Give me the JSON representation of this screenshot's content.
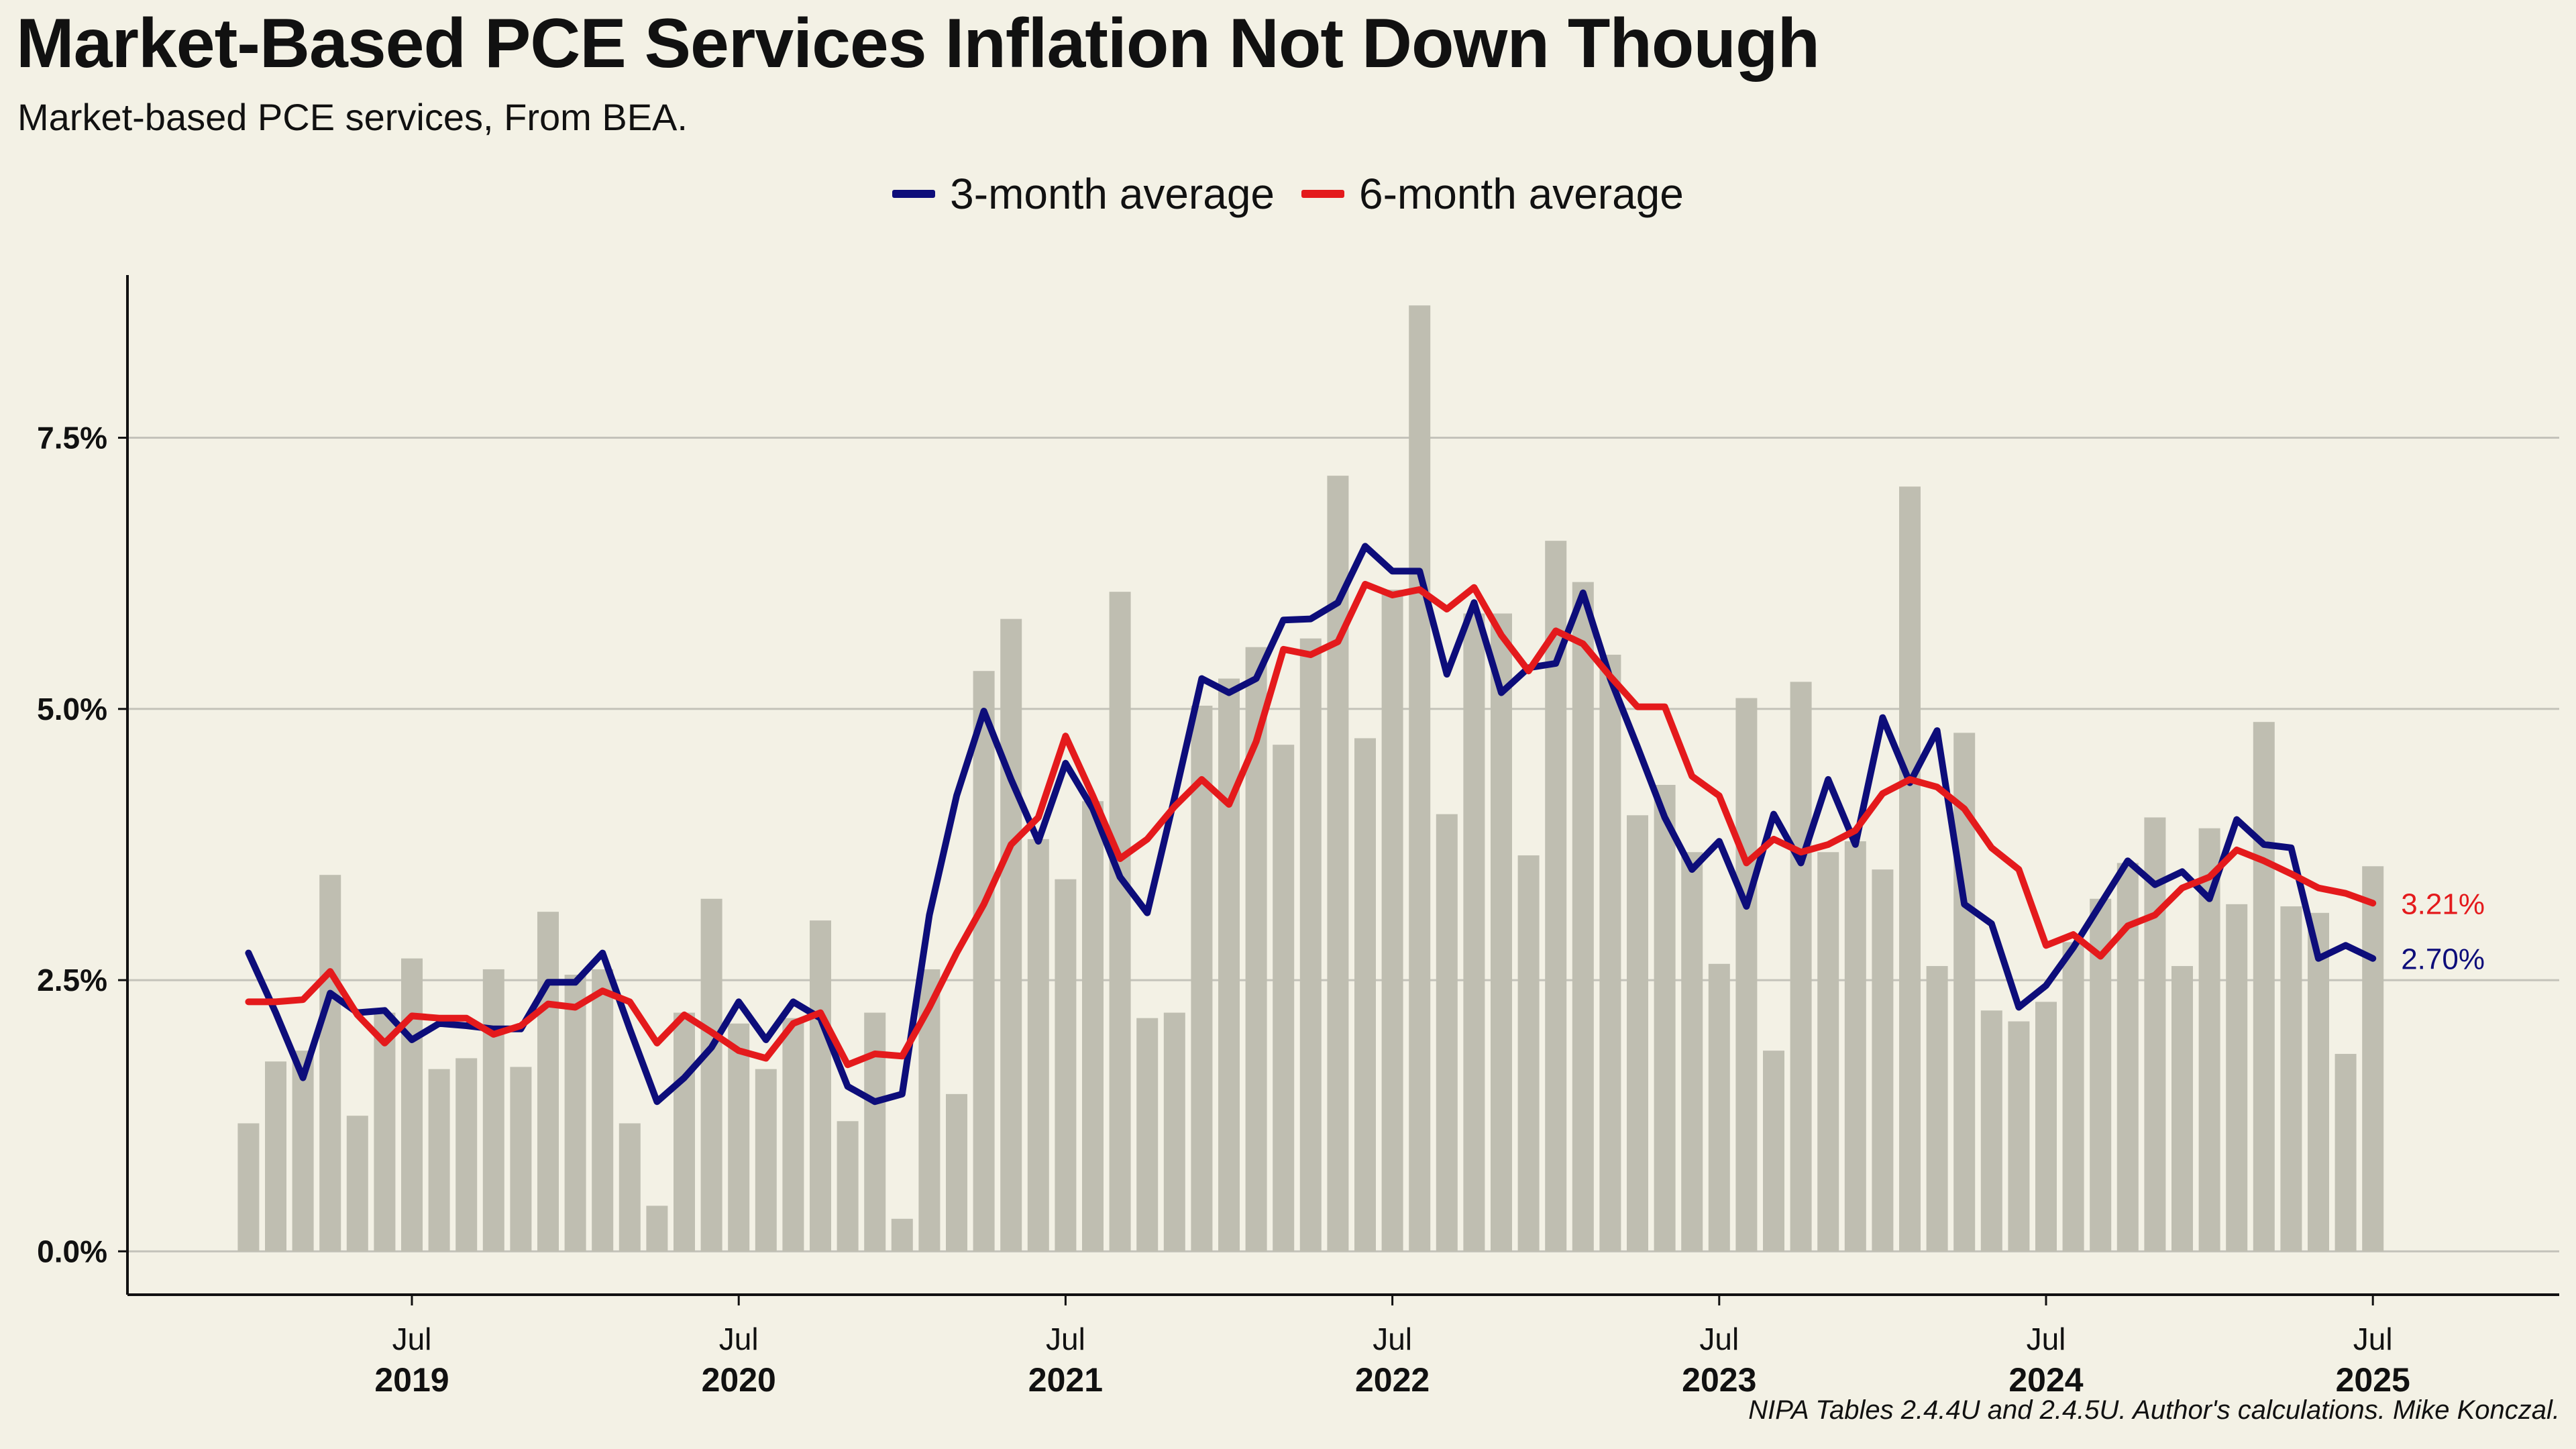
{
  "title": "Market-Based PCE Services Inflation Not Down Though",
  "subtitle": "Market-based PCE services, From BEA.",
  "caption": "NIPA Tables 2.4.4U and 2.4.5U. Author's calculations. Mike Konczal.",
  "chart_data": {
    "type": "bar+line",
    "x_start": "2019-01",
    "x_months": [
      "2019-01",
      "2019-02",
      "2019-03",
      "2019-04",
      "2019-05",
      "2019-06",
      "2019-07",
      "2019-08",
      "2019-09",
      "2019-10",
      "2019-11",
      "2019-12",
      "2020-01",
      "2020-02",
      "2020-03",
      "2020-04",
      "2020-05",
      "2020-06",
      "2020-07",
      "2020-08",
      "2020-09",
      "2020-10",
      "2020-11",
      "2020-12",
      "2021-01",
      "2021-02",
      "2021-03",
      "2021-04",
      "2021-05",
      "2021-06",
      "2021-07",
      "2021-08",
      "2021-09",
      "2021-10",
      "2021-11",
      "2021-12",
      "2022-01",
      "2022-02",
      "2022-03",
      "2022-04",
      "2022-05",
      "2022-06",
      "2022-07",
      "2022-08",
      "2022-09",
      "2022-10",
      "2022-11",
      "2022-12",
      "2023-01",
      "2023-02",
      "2023-03",
      "2023-04",
      "2023-05",
      "2023-06",
      "2023-07",
      "2023-08",
      "2023-09",
      "2023-10",
      "2023-11",
      "2023-12",
      "2024-01",
      "2024-02",
      "2024-03",
      "2024-04",
      "2024-05",
      "2024-06",
      "2024-07",
      "2024-08",
      "2024-09",
      "2024-10",
      "2024-11",
      "2024-12",
      "2025-01",
      "2025-02",
      "2025-03",
      "2025-04",
      "2025-05",
      "2025-06",
      "2025-07"
    ],
    "bars": [
      1.18,
      1.75,
      1.85,
      3.47,
      1.25,
      2.2,
      2.7,
      1.68,
      1.78,
      2.6,
      1.7,
      3.13,
      2.55,
      2.6,
      1.18,
      0.42,
      2.2,
      3.25,
      2.1,
      1.68,
      2.15,
      3.05,
      1.2,
      2.2,
      0.3,
      2.6,
      1.45,
      5.35,
      5.83,
      3.8,
      3.43,
      4.15,
      6.08,
      2.15,
      2.2,
      5.03,
      5.28,
      5.57,
      4.67,
      5.65,
      7.15,
      4.73,
      6.1,
      8.72,
      4.03,
      5.88,
      5.88,
      3.65,
      6.55,
      6.17,
      5.5,
      4.02,
      4.3,
      3.68,
      2.65,
      5.1,
      1.85,
      5.25,
      3.68,
      3.78,
      3.52,
      7.05,
      2.63,
      4.78,
      2.22,
      2.12,
      2.3,
      2.85,
      3.25,
      3.58,
      4.0,
      2.63,
      3.9,
      3.2,
      4.88,
      3.18,
      3.12,
      1.82,
      3.55
    ],
    "series": [
      {
        "name": "3-month average",
        "color": "#0d0d7a",
        "values": [
          2.75,
          2.2,
          1.6,
          2.38,
          2.2,
          2.22,
          1.95,
          2.1,
          2.08,
          2.05,
          2.05,
          2.48,
          2.48,
          2.75,
          2.05,
          1.38,
          1.6,
          1.88,
          2.3,
          1.95,
          2.3,
          2.15,
          1.52,
          1.38,
          1.45,
          3.1,
          4.2,
          4.98,
          4.35,
          3.78,
          4.5,
          4.08,
          3.45,
          3.12,
          4.18,
          5.28,
          5.15,
          5.28,
          5.82,
          5.83,
          5.98,
          6.5,
          6.27,
          6.27,
          5.32,
          5.98,
          5.15,
          5.38,
          5.42,
          6.07,
          5.28,
          4.65,
          4.0,
          3.52,
          3.78,
          3.18,
          4.03,
          3.58,
          4.35,
          3.75,
          4.92,
          4.32,
          4.8,
          3.2,
          3.02,
          2.25,
          2.45,
          2.8,
          3.2,
          3.6,
          3.38,
          3.5,
          3.25,
          3.98,
          3.75,
          3.72,
          2.7,
          2.82,
          2.7
        ]
      },
      {
        "name": "6-month average",
        "color": "#e41a1c",
        "values": [
          2.3,
          2.3,
          2.32,
          2.58,
          2.18,
          1.92,
          2.17,
          2.15,
          2.15,
          2.0,
          2.08,
          2.28,
          2.25,
          2.4,
          2.3,
          1.92,
          2.18,
          2.02,
          1.85,
          1.78,
          2.1,
          2.2,
          1.72,
          1.82,
          1.8,
          2.25,
          2.75,
          3.2,
          3.75,
          4.0,
          4.75,
          4.2,
          3.62,
          3.8,
          4.1,
          4.35,
          4.12,
          4.7,
          5.55,
          5.5,
          5.62,
          6.15,
          6.05,
          6.1,
          5.92,
          6.12,
          5.68,
          5.35,
          5.72,
          5.6,
          5.3,
          5.02,
          5.02,
          4.38,
          4.2,
          3.58,
          3.8,
          3.68,
          3.75,
          3.88,
          4.22,
          4.35,
          4.28,
          4.08,
          3.72,
          3.52,
          2.82,
          2.92,
          2.72,
          3.0,
          3.1,
          3.35,
          3.45,
          3.7,
          3.6,
          3.48,
          3.35,
          3.3,
          3.21
        ]
      }
    ],
    "end_labels": [
      "3.21%",
      "2.70%"
    ],
    "ylim": [
      -0.4,
      9.0
    ],
    "yticks": [
      0,
      2.5,
      5.0,
      7.5
    ],
    "ytick_labels": [
      "0.0%",
      "2.5%",
      "5.0%",
      "7.5%"
    ],
    "xtick_month_label": "Jul",
    "xtick_years": [
      "2019",
      "2020",
      "2021",
      "2022",
      "2023",
      "2024",
      "2025"
    ],
    "grid": "horizontal",
    "legend_position": "top-center"
  },
  "colors": {
    "background": "#f3f1e5",
    "bar": "#bfbeb1",
    "grid": "#c4c3ba",
    "axis": "#111111"
  }
}
